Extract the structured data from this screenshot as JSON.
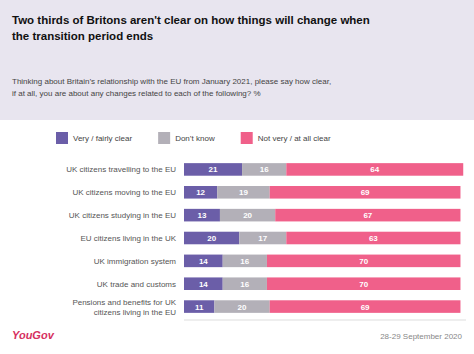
{
  "chart_data": {
    "type": "bar",
    "orientation": "horizontal",
    "stacked": true,
    "data_labels": true,
    "tick_labels": "y",
    "grid": false,
    "legend": "top",
    "title": "Two thirds of Britons aren't clear on how things will change when\nthe transition period ends",
    "subtitle": "Thinking about Britain’s relationship with the EU from January 2021, please say how clear,\nif at all, you are about any changes related to each of the following? %",
    "annotations": [
      "YouGov",
      "28-29 September 2020"
    ],
    "categories": [
      "UK citizens travelling to the EU",
      "UK citizens moving to the EU",
      "UK citizens studying in the EU",
      "EU citizens living in the UK",
      "UK immigration system",
      "UK trade and customs",
      "Pensions and benefits for UK\ncitizens living in the EU"
    ],
    "series": [
      {
        "name": "Very / fairly clear",
        "color": "#6b5ea8",
        "values": [
          21,
          12,
          13,
          20,
          14,
          14,
          11
        ]
      },
      {
        "name": "Don’t know",
        "color": "#b3b0b8",
        "values": [
          16,
          19,
          20,
          17,
          16,
          16,
          20
        ]
      },
      {
        "name": "Not very / at all clear",
        "color": "#f0608a",
        "values": [
          64,
          69,
          67,
          63,
          70,
          70,
          69
        ]
      }
    ],
    "xlim": [
      0,
      102
    ]
  }
}
